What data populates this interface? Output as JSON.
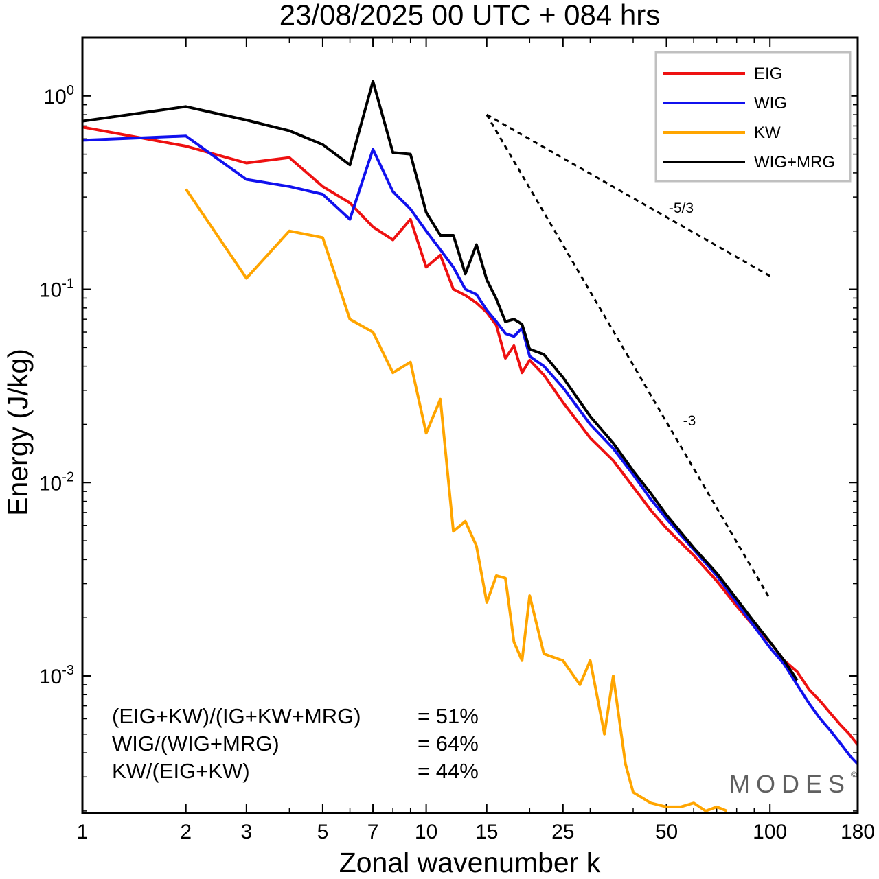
{
  "chart_data": {
    "type": "line",
    "title": "23/08/2025  00 UTC  + 084 hrs",
    "xlabel": "Zonal wavenumber k",
    "ylabel": "Energy (J/kg)",
    "xscale": "log",
    "yscale": "log",
    "xlim": [
      1,
      180
    ],
    "ylim": [
      0.000195,
      2.0
    ],
    "xticks": [
      1,
      2,
      3,
      5,
      7,
      10,
      15,
      25,
      50,
      100,
      180
    ],
    "xtick_labels": [
      "1",
      "2",
      "3",
      "5",
      "7",
      "10",
      "15",
      "25",
      "50",
      "100",
      "180"
    ],
    "yticks": [
      {
        "value": 1.0,
        "base": "10",
        "exp": "0"
      },
      {
        "value": 0.1,
        "base": "10",
        "exp": "-1"
      },
      {
        "value": 0.01,
        "base": "10",
        "exp": "-2"
      },
      {
        "value": 0.001,
        "base": "10",
        "exp": "-3"
      }
    ],
    "legend": {
      "placement": "top-right",
      "entries": [
        "EIG",
        "WIG",
        "KW",
        "WIG+MRG"
      ]
    },
    "series": [
      {
        "name": "EIG",
        "color": "#ee1111",
        "x": [
          1,
          2,
          3,
          4,
          5,
          6,
          7,
          8,
          9,
          10,
          11,
          12,
          13,
          14,
          15,
          16,
          17,
          18,
          19,
          20,
          22,
          25,
          30,
          35,
          40,
          45,
          50,
          60,
          70,
          80,
          90,
          100,
          110,
          120,
          130,
          140,
          150,
          160,
          170,
          180
        ],
        "values": [
          0.69,
          0.55,
          0.45,
          0.48,
          0.34,
          0.28,
          0.21,
          0.18,
          0.23,
          0.13,
          0.15,
          0.1,
          0.093,
          0.085,
          0.076,
          0.065,
          0.044,
          0.051,
          0.037,
          0.043,
          0.036,
          0.026,
          0.017,
          0.013,
          0.0095,
          0.0072,
          0.0058,
          0.0042,
          0.0031,
          0.0023,
          0.0018,
          0.0015,
          0.0012,
          0.00105,
          0.00085,
          0.00074,
          0.00064,
          0.00056,
          0.0005,
          0.00044
        ]
      },
      {
        "name": "WIG",
        "color": "#1111ee",
        "x": [
          1,
          2,
          3,
          4,
          5,
          6,
          7,
          8,
          9,
          10,
          11,
          12,
          13,
          14,
          15,
          16,
          17,
          18,
          19,
          20,
          22,
          25,
          30,
          35,
          40,
          45,
          50,
          60,
          70,
          80,
          90,
          100,
          110,
          120,
          130,
          140,
          150,
          160,
          170,
          180
        ],
        "values": [
          0.59,
          0.62,
          0.37,
          0.34,
          0.31,
          0.23,
          0.53,
          0.32,
          0.26,
          0.2,
          0.16,
          0.13,
          0.1,
          0.094,
          0.078,
          0.068,
          0.059,
          0.057,
          0.063,
          0.045,
          0.04,
          0.031,
          0.02,
          0.015,
          0.011,
          0.0082,
          0.0065,
          0.0045,
          0.0033,
          0.0024,
          0.0018,
          0.0014,
          0.00115,
          0.0009,
          0.00072,
          0.0006,
          0.00052,
          0.00045,
          0.00039,
          0.00035
        ]
      },
      {
        "name": "KW",
        "color": "#ffa500",
        "x": [
          2,
          3,
          4,
          5,
          6,
          7,
          8,
          9,
          10,
          11,
          12,
          13,
          14,
          15,
          16,
          17,
          18,
          19,
          20,
          22,
          25,
          28,
          30,
          33,
          35,
          38,
          40,
          45,
          50,
          55,
          60,
          65,
          70,
          75
        ],
        "values": [
          0.33,
          0.114,
          0.2,
          0.185,
          0.07,
          0.06,
          0.037,
          0.042,
          0.018,
          0.027,
          0.0056,
          0.0063,
          0.0047,
          0.0024,
          0.0033,
          0.0032,
          0.0015,
          0.0012,
          0.0026,
          0.0013,
          0.0012,
          0.0009,
          0.0012,
          0.0005,
          0.001,
          0.00035,
          0.00025,
          0.00022,
          0.00021,
          0.00021,
          0.00022,
          0.0002,
          0.00021,
          0.0002
        ]
      },
      {
        "name": "WIG+MRG",
        "color": "#000000",
        "x": [
          1,
          2,
          3,
          4,
          5,
          6,
          7,
          8,
          9,
          10,
          11,
          12,
          13,
          14,
          15,
          16,
          17,
          18,
          19,
          20,
          22,
          25,
          30,
          35,
          40,
          45,
          50,
          60,
          70,
          80,
          90,
          100,
          110,
          120
        ],
        "values": [
          0.74,
          0.88,
          0.75,
          0.66,
          0.56,
          0.44,
          1.19,
          0.51,
          0.5,
          0.25,
          0.19,
          0.19,
          0.12,
          0.17,
          0.112,
          0.089,
          0.068,
          0.07,
          0.066,
          0.049,
          0.046,
          0.035,
          0.022,
          0.016,
          0.0115,
          0.0088,
          0.0068,
          0.0046,
          0.0034,
          0.0025,
          0.0019,
          0.0015,
          0.0012,
          0.00095
        ]
      }
    ],
    "reference_lines": [
      {
        "label": "-5/3",
        "x": [
          15,
          100
        ],
        "values": [
          0.8,
          0.117
        ]
      },
      {
        "label": "-3",
        "x": [
          15,
          100
        ],
        "values": [
          0.8,
          0.0025
        ]
      }
    ]
  },
  "annotations": {
    "rows": [
      {
        "label": "(EIG+KW)/(IG+KW+MRG)",
        "value": "= 51%"
      },
      {
        "label": "WIG/(WIG+MRG)",
        "value": "= 64%"
      },
      {
        "label": "KW/(EIG+KW)",
        "value": "= 44%"
      }
    ],
    "watermark": "MODES",
    "watermark_symbol": "©"
  }
}
